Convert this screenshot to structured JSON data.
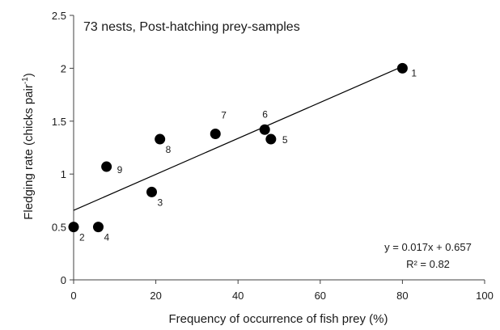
{
  "chart_data": {
    "type": "scatter",
    "title": "",
    "annotation": "73 nests, Post-hatching prey-samples",
    "xlabel": "Frequency of occurrence of fish prey (%)",
    "ylabel": "Fledging rate (chicks pair",
    "ylabel_superscript": "-1",
    "ylabel_close": ")",
    "xlim": [
      0,
      100
    ],
    "ylim": [
      0,
      2.5
    ],
    "x_ticks": [
      0,
      20,
      40,
      60,
      80,
      100
    ],
    "x_tick_labels": [
      "0",
      "20",
      "40",
      "60",
      "80",
      "100"
    ],
    "y_ticks": [
      0,
      0.5,
      1,
      1.5,
      2,
      2.5
    ],
    "y_tick_labels": [
      "0",
      "0.5",
      "1",
      "1.5",
      "2",
      "2.5"
    ],
    "grid": false,
    "points": [
      {
        "label": "1",
        "x": 80,
        "y": 2.0
      },
      {
        "label": "2",
        "x": 0,
        "y": 0.5
      },
      {
        "label": "3",
        "x": 19,
        "y": 0.83
      },
      {
        "label": "4",
        "x": 6,
        "y": 0.5
      },
      {
        "label": "5",
        "x": 48,
        "y": 1.33
      },
      {
        "label": "6",
        "x": 46.5,
        "y": 1.42
      },
      {
        "label": "7",
        "x": 34.5,
        "y": 1.38
      },
      {
        "label": "8",
        "x": 21,
        "y": 1.33
      },
      {
        "label": "9",
        "x": 8,
        "y": 1.07
      }
    ],
    "trendline": {
      "slope": 0.017,
      "intercept": 0.657
    },
    "equation": "y = 0.017x + 0.657",
    "r_squared": "R² = 0.82",
    "colors": {
      "points": "#000000",
      "line": "#000000",
      "axis": "#404040"
    }
  }
}
